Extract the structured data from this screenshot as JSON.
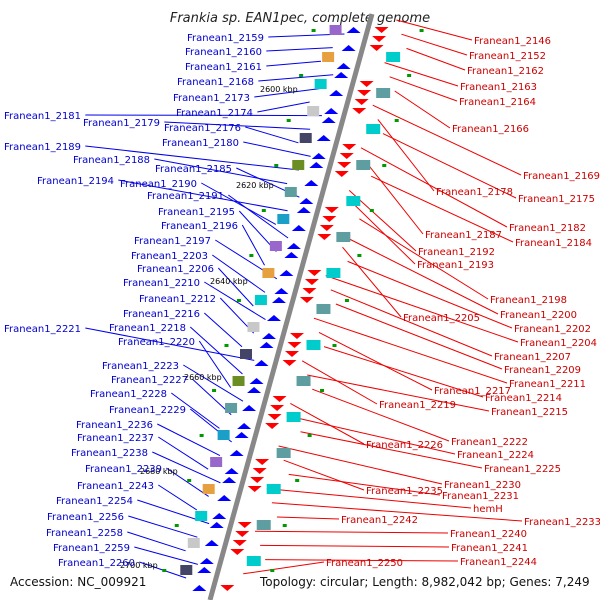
{
  "title": "Frankia sp. EAN1pec, complete genome",
  "footer": {
    "accession": "Accession: NC_009921",
    "topology": "Topology: circular; Length: 8,982,042 bp; Genes: 7,249"
  },
  "colors": {
    "forward_strand": "#0000ff",
    "reverse_strand": "#ff0000",
    "backbone": "#888888",
    "tick": "#009900"
  },
  "kbp_marks": [
    "2600 kbp",
    "2620 kbp",
    "2640 kbp",
    "2660 kbp",
    "2680 kbp",
    "2700 kbp"
  ],
  "left_labels": [
    "Franean1_2159",
    "Franean1_2160",
    "Franean1_2161",
    "Franean1_2168",
    "Franean1_2173",
    "Franean1_2174",
    "Franean1_2181",
    "Franean1_2179",
    "Franean1_2176",
    "Franean1_2180",
    "Franean1_2189",
    "Franean1_2188",
    "Franean1_2185",
    "Franean1_2194",
    "Franean1_2190",
    "Franean1_2191",
    "Franean1_2195",
    "Franean1_2196",
    "Franean1_2197",
    "Franean1_2203",
    "Franean1_2206",
    "Franean1_2210",
    "Franean1_2212",
    "Franean1_2216",
    "Franean1_2221",
    "Franean1_2218",
    "Franean1_2220",
    "Franean1_2223",
    "Franean1_2227",
    "Franean1_2228",
    "Franean1_2229",
    "Franean1_2236",
    "Franean1_2237",
    "Franean1_2238",
    "Franean1_2239",
    "Franean1_2243",
    "Franean1_2254",
    "Franean1_2256",
    "Franean1_2258",
    "Franean1_2259",
    "Franean1_2260"
  ],
  "right_labels": [
    "Franean1_2146",
    "Franean1_2152",
    "Franean1_2162",
    "Franean1_2163",
    "Franean1_2164",
    "Franean1_2166",
    "Franean1_2169",
    "Franean1_2178",
    "Franean1_2175",
    "Franean1_2182",
    "Franean1_2187",
    "Franean1_2184",
    "Franean1_2192",
    "Franean1_2193",
    "Franean1_2198",
    "Franean1_2200",
    "Franean1_2205",
    "Franean1_2202",
    "Franean1_2204",
    "Franean1_2207",
    "Franean1_2209",
    "Franean1_2211",
    "Franean1_2217",
    "Franean1_2214",
    "Franean1_2219",
    "Franean1_2215",
    "Franean1_2222",
    "Franean1_2226",
    "Franean1_2224",
    "Franean1_2225",
    "Franean1_2230",
    "Franean1_2235",
    "Franean1_2231",
    "hemH",
    "Franean1_2233",
    "Franean1_2242",
    "Franean1_2240",
    "Franean1_2241",
    "Franean1_2244",
    "Franean1_2250"
  ]
}
